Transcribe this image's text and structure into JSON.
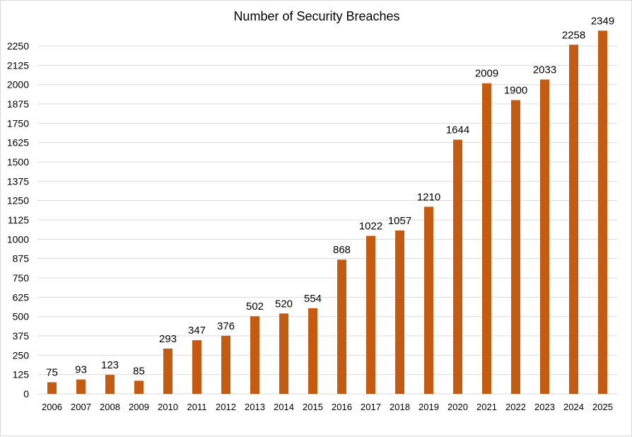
{
  "chart_data": {
    "type": "bar",
    "title": "Number of Security Breaches",
    "xlabel": "",
    "ylabel": "",
    "categories": [
      "2006",
      "2007",
      "2008",
      "2009",
      "2010",
      "2011",
      "2012",
      "2013",
      "2014",
      "2015",
      "2016",
      "2017",
      "2018",
      "2019",
      "2020",
      "2021",
      "2022",
      "2023",
      "2024",
      "2025"
    ],
    "values": [
      75,
      93,
      123,
      85,
      293,
      347,
      376,
      502,
      520,
      554,
      868,
      1022,
      1057,
      1210,
      1644,
      2009,
      1900,
      2033,
      2258,
      2349
    ],
    "ylim": [
      0,
      2250
    ],
    "yticks": [
      0,
      125,
      250,
      375,
      500,
      625,
      750,
      875,
      1000,
      1125,
      1250,
      1375,
      1500,
      1625,
      1750,
      1875,
      2000,
      2125,
      2250
    ],
    "grid": true,
    "legend": "none",
    "data_labels": true,
    "bar_color": "#c55a11",
    "gridline_color": "#d9d9d9"
  }
}
